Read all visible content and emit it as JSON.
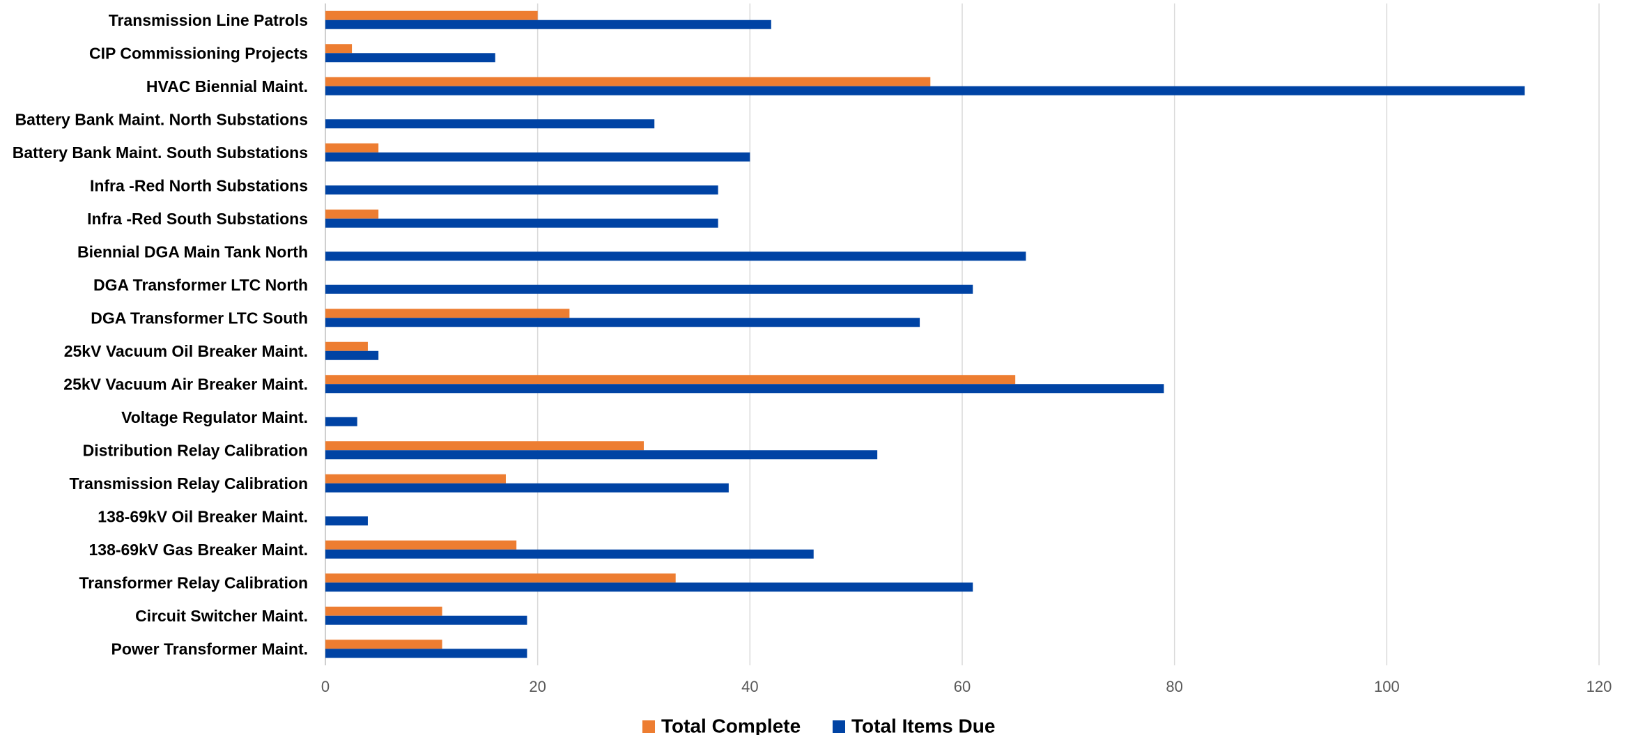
{
  "chart_data": {
    "type": "bar",
    "orientation": "horizontal",
    "title": "",
    "xlabel": "",
    "ylabel": "",
    "xlim": [
      0,
      120
    ],
    "x_ticks": [
      0,
      20,
      40,
      60,
      80,
      100,
      120
    ],
    "grid": true,
    "legend_position": "bottom",
    "categories": [
      "Transmission Line Patrols",
      "CIP Commissioning Projects",
      "HVAC Biennial Maint.",
      "Battery Bank Maint. North Substations",
      "Battery Bank Maint. South Substations",
      "Infra -Red North Substations",
      "Infra -Red South Substations",
      "Biennial DGA Main Tank North",
      "DGA Transformer LTC North",
      "DGA Transformer LTC South",
      "25kV Vacuum Oil Breaker Maint.",
      "25kV Vacuum Air Breaker Maint.",
      "Voltage Regulator Maint.",
      "Distribution Relay Calibration",
      "Transmission Relay Calibration",
      "138-69kV Oil Breaker Maint.",
      "138-69kV Gas Breaker Maint.",
      "Transformer Relay Calibration",
      "Circuit Switcher Maint.",
      "Power Transformer Maint."
    ],
    "series": [
      {
        "name": "Total Complete",
        "color": "#ED7D31",
        "values": [
          20,
          2.5,
          57,
          0,
          5,
          0,
          5,
          0,
          0,
          23,
          4,
          65,
          0,
          30,
          17,
          0,
          18,
          33,
          11,
          11
        ]
      },
      {
        "name": "Total Items Due",
        "color": "#0043A4",
        "values": [
          42,
          16,
          113,
          31,
          40,
          37,
          37,
          66,
          61,
          56,
          5,
          79,
          3,
          52,
          38,
          4,
          46,
          61,
          19,
          19
        ]
      }
    ]
  }
}
